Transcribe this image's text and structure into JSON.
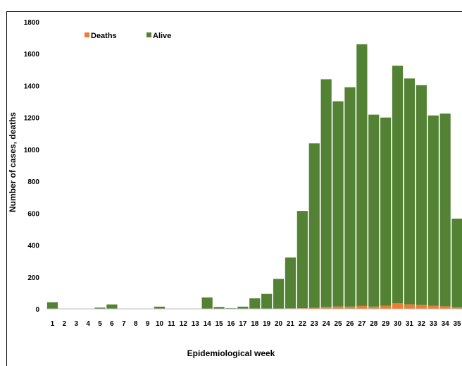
{
  "chart_data": {
    "type": "bar",
    "stacked": true,
    "xlabel": "Epidemiological week",
    "ylabel": "Number of cases, deaths",
    "ylim": [
      0,
      1800
    ],
    "yticks": [
      0,
      200,
      400,
      600,
      800,
      1000,
      1200,
      1400,
      1600,
      1800
    ],
    "categories": [
      "1",
      "2",
      "3",
      "4",
      "5",
      "6",
      "7",
      "8",
      "9",
      "10",
      "11",
      "12",
      "13",
      "14",
      "15",
      "16",
      "17",
      "18",
      "19",
      "20",
      "21",
      "22",
      "23",
      "24",
      "25",
      "26",
      "27",
      "28",
      "29",
      "30",
      "31",
      "32",
      "33",
      "34",
      "35"
    ],
    "series": [
      {
        "name": "Deaths",
        "color": "#ed7d31",
        "values": [
          0,
          0,
          0,
          0,
          0,
          0,
          0,
          0,
          0,
          0,
          0,
          0,
          0,
          0,
          0,
          0,
          0,
          0,
          1,
          2,
          3,
          4,
          7,
          12,
          15,
          14,
          18,
          14,
          20,
          35,
          28,
          25,
          20,
          16,
          10
        ]
      },
      {
        "name": "Alive",
        "color": "#548235",
        "values": [
          42,
          0,
          0,
          0,
          8,
          28,
          0,
          0,
          0,
          14,
          0,
          0,
          0,
          72,
          12,
          4,
          14,
          66,
          93,
          186,
          319,
          610,
          1031,
          1428,
          1287,
          1376,
          1642,
          1204,
          1180,
          1490,
          1417,
          1378,
          1193,
          1209,
          556
        ]
      }
    ],
    "legend": {
      "placement": "top-left",
      "entries": [
        "Deaths",
        "Alive"
      ]
    },
    "grid": false
  }
}
